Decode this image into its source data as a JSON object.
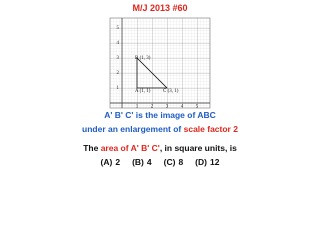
{
  "header": {
    "title": "M/J 2013 #60"
  },
  "figure": {
    "y_labels": [
      "1",
      "2",
      "3",
      "4",
      "5"
    ],
    "x_labels": [
      "1",
      "2",
      "3",
      "4",
      "5"
    ],
    "points": {
      "A": "A (1, 1)",
      "B": "B (1, 3)",
      "C": "C (3, 1)"
    }
  },
  "question": {
    "line1": "A' B' C' is the image of ABC",
    "line2": {
      "text": "under an enlargement of",
      "highlight": "scale factor 2"
    },
    "line3": {
      "start": "The",
      "highlight": "area of A' B' C'",
      "end": ", in square units, is"
    },
    "options": [
      {
        "letter": "(A)",
        "value": 2
      },
      {
        "letter": "(B)",
        "value": 4
      },
      {
        "letter": "(C)",
        "value": 8
      },
      {
        "letter": "(D)",
        "value": 12
      }
    ]
  }
}
